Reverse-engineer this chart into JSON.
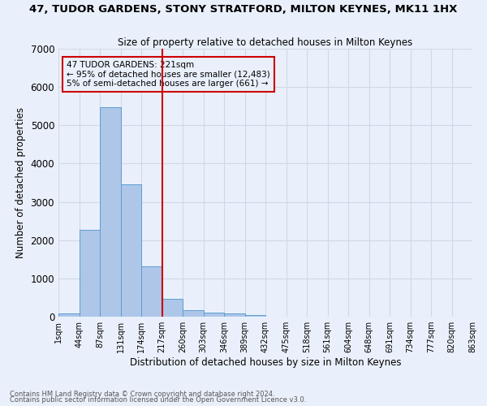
{
  "title": "47, TUDOR GARDENS, STONY STRATFORD, MILTON KEYNES, MK11 1HX",
  "subtitle": "Size of property relative to detached houses in Milton Keynes",
  "xlabel": "Distribution of detached houses by size in Milton Keynes",
  "ylabel": "Number of detached properties",
  "footnote1": "Contains HM Land Registry data © Crown copyright and database right 2024.",
  "footnote2": "Contains public sector information licensed under the Open Government Licence v3.0.",
  "bins": [
    "1sqm",
    "44sqm",
    "87sqm",
    "131sqm",
    "174sqm",
    "217sqm",
    "260sqm",
    "303sqm",
    "346sqm",
    "389sqm",
    "432sqm",
    "475sqm",
    "518sqm",
    "561sqm",
    "604sqm",
    "648sqm",
    "691sqm",
    "734sqm",
    "777sqm",
    "820sqm",
    "863sqm"
  ],
  "values": [
    75,
    2280,
    5480,
    3450,
    1320,
    470,
    165,
    110,
    75,
    40,
    0,
    0,
    0,
    0,
    0,
    0,
    0,
    0,
    0,
    0
  ],
  "bar_color": "#aec6e8",
  "bar_edge_color": "#5a9fd4",
  "grid_color": "#d0d8e8",
  "background_color": "#eaf0fb",
  "vline_color": "#cc0000",
  "vline_x": 5.0,
  "annotation_text": "47 TUDOR GARDENS: 221sqm\n← 95% of detached houses are smaller (12,483)\n5% of semi-detached houses are larger (661) →",
  "annotation_box_color": "#cc0000",
  "ylim": [
    0,
    7000
  ],
  "yticks": [
    0,
    1000,
    2000,
    3000,
    4000,
    5000,
    6000,
    7000
  ]
}
